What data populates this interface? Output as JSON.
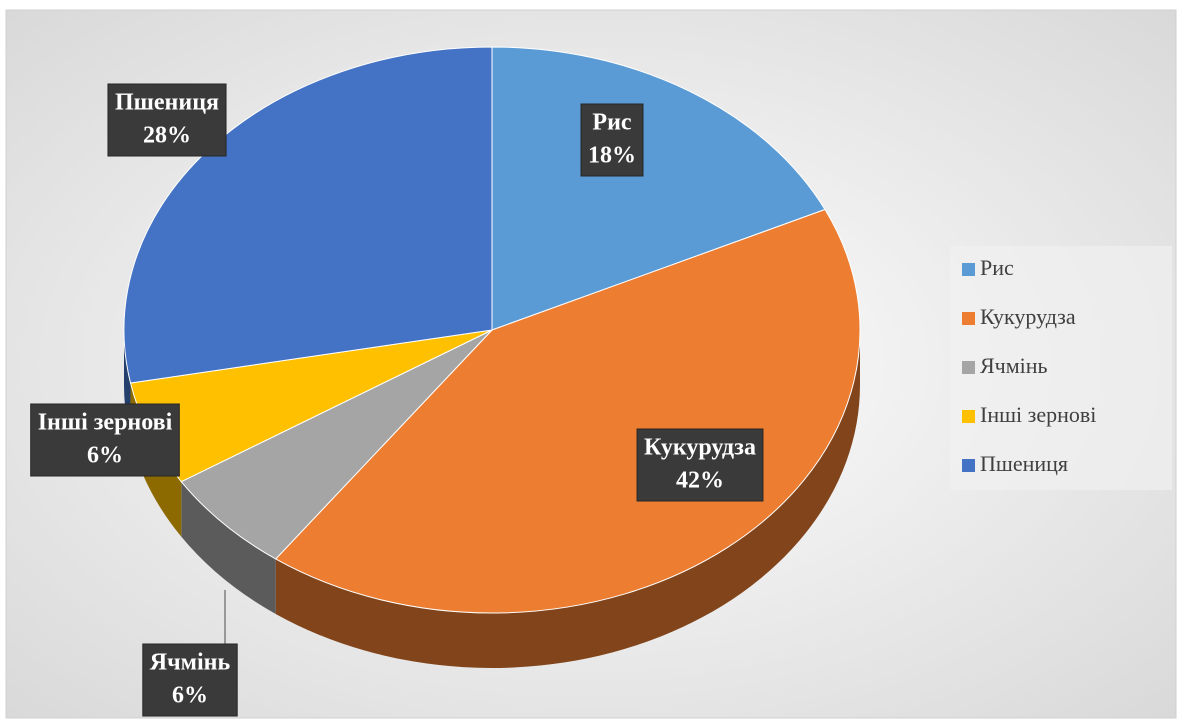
{
  "chart_data": {
    "type": "pie",
    "categories": [
      "Рис",
      "Кукурудза",
      "Ячмінь",
      "Інші зернові",
      "Пшениця"
    ],
    "values": [
      18,
      42,
      6,
      6,
      28
    ],
    "value_labels": [
      "18%",
      "42%",
      "6%",
      "6%",
      "28%"
    ],
    "colors": [
      "#5b9bd5",
      "#ed7d31",
      "#a5a5a5",
      "#ffc000",
      "#4472c4"
    ],
    "legend": "right"
  }
}
